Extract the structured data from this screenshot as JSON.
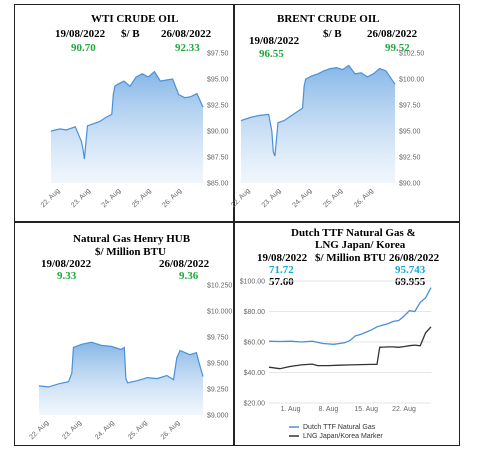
{
  "panels": {
    "wti": {
      "title": "WTI CRUDE OIL",
      "unit": "$/ B",
      "date_start": "19/08/2022",
      "date_end": "26/08/2022",
      "price_start": "90.70",
      "price_end": "92.33"
    },
    "brent": {
      "title": "BRENT  CRUDE OIL",
      "unit": "$/ B",
      "date_start": "19/08/2022",
      "date_end": "26/08/2022",
      "price_start": "96.55",
      "price_end": "99.52"
    },
    "ng": {
      "title": "Natural Gas  Henry HUB",
      "unit": "$/ Million BTU",
      "date_start": "19/08/2022",
      "date_end": "26/08/2022",
      "price_start": "9.33",
      "price_end": "9.36"
    },
    "ttf": {
      "title": "Dutch TTF Natural Gas &",
      "subtitle": "LNG Japan/ Korea",
      "unit": "$/ Million BTU",
      "date_start": "19/08/2022",
      "date_end": "26/08/2022",
      "ttf_start": "71.72",
      "lng_start": "57.60",
      "ttf_end": "95.743",
      "lng_end": "69.955"
    }
  },
  "colors": {
    "line": "#4a90d9",
    "fill_top": "#7fb3e6",
    "fill_bottom": "#e8f1fb",
    "green": "#1fa83c",
    "cyan": "#1aa6d6",
    "lng": "#333333"
  },
  "chart_data": [
    {
      "type": "area",
      "title": "WTI CRUDE OIL",
      "x_ticks": [
        "22. Aug",
        "23. Aug",
        "24. Aug",
        "25. Aug",
        "26. Aug"
      ],
      "y_ticks": [
        "$85.00",
        "$87.50",
        "$90.00",
        "$92.50",
        "$95.00",
        "$97.50"
      ],
      "ylim": [
        85,
        97.5
      ],
      "xlim": [
        0,
        5
      ],
      "grid": false,
      "x": [
        0,
        0.3,
        0.5,
        0.8,
        1.0,
        1.05,
        1.1,
        1.15,
        1.2,
        1.4,
        1.6,
        1.8,
        2.0,
        2.05,
        2.1,
        2.2,
        2.4,
        2.6,
        2.8,
        3.0,
        3.2,
        3.4,
        3.6,
        3.8,
        4.0,
        4.2,
        4.4,
        4.6,
        4.8,
        5.0
      ],
      "values": [
        90.0,
        90.2,
        90.1,
        90.4,
        89.0,
        88.3,
        87.3,
        89.0,
        90.5,
        90.7,
        90.9,
        91.3,
        91.6,
        93.5,
        94.3,
        94.5,
        94.8,
        94.3,
        95.2,
        95.5,
        95.2,
        95.7,
        94.8,
        94.9,
        95.0,
        93.5,
        93.2,
        93.3,
        93.6,
        92.3
      ]
    },
    {
      "type": "area",
      "title": "BRENT  CRUDE OIL",
      "x_ticks": [
        "22. Aug",
        "23. Aug",
        "24. Aug",
        "25. Aug",
        "26. Aug"
      ],
      "y_ticks": [
        "$90.00",
        "$92.50",
        "$95.00",
        "$97.50",
        "$100.00",
        "$102.50"
      ],
      "ylim": [
        90,
        102.5
      ],
      "xlim": [
        0,
        5
      ],
      "grid": false,
      "x": [
        0,
        0.3,
        0.6,
        0.9,
        1.0,
        1.05,
        1.1,
        1.2,
        1.4,
        1.6,
        1.8,
        2.0,
        2.05,
        2.1,
        2.3,
        2.5,
        2.7,
        2.9,
        3.1,
        3.3,
        3.5,
        3.7,
        3.9,
        4.1,
        4.3,
        4.5,
        4.7,
        5.0
      ],
      "values": [
        96.0,
        96.3,
        96.5,
        96.6,
        95.0,
        93.0,
        92.6,
        95.8,
        96.0,
        96.4,
        96.8,
        97.2,
        99.3,
        100.0,
        100.3,
        100.5,
        100.8,
        101.0,
        101.1,
        100.9,
        101.3,
        100.5,
        100.6,
        100.2,
        100.5,
        101.0,
        100.8,
        99.5
      ]
    },
    {
      "type": "area",
      "title": "Natural Gas  Henry HUB",
      "x_ticks": [
        "22. Aug",
        "23. Aug",
        "24. Aug",
        "25. Aug",
        "26. Aug"
      ],
      "y_ticks": [
        "$9.000",
        "$9.250",
        "$9.500",
        "$9.750",
        "$10.000",
        "$10.250"
      ],
      "ylim": [
        9.0,
        10.25
      ],
      "xlim": [
        0,
        5
      ],
      "grid": false,
      "x": [
        0,
        0.3,
        0.6,
        0.9,
        1.0,
        1.05,
        1.3,
        1.6,
        1.9,
        2.2,
        2.5,
        2.6,
        2.65,
        2.7,
        3.0,
        3.3,
        3.6,
        3.9,
        4.1,
        4.2,
        4.3,
        4.6,
        4.8,
        4.9,
        5.0
      ],
      "values": [
        9.28,
        9.27,
        9.3,
        9.32,
        9.4,
        9.65,
        9.68,
        9.7,
        9.67,
        9.66,
        9.63,
        9.65,
        9.35,
        9.31,
        9.33,
        9.36,
        9.35,
        9.38,
        9.34,
        9.55,
        9.62,
        9.58,
        9.6,
        9.48,
        9.37
      ]
    },
    {
      "type": "line",
      "title": "Dutch TTF Natural Gas & LNG Japan/ Korea",
      "x_ticks": [
        "1. Aug",
        "8. Aug",
        "15. Aug",
        "22. Aug"
      ],
      "y_ticks": [
        "$20.00",
        "$40.00",
        "$60.00",
        "$80.00",
        "$100.00"
      ],
      "ylim": [
        20,
        100
      ],
      "xlim": [
        -3,
        27
      ],
      "grid": true,
      "legend": "bottom",
      "series": [
        {
          "name": "Dutch TTF Natural Gas",
          "x": [
            -3,
            -1,
            1,
            3,
            5,
            7,
            9,
            11,
            12,
            13,
            14,
            15,
            16,
            17,
            18,
            19,
            20,
            21,
            22,
            23,
            24,
            25,
            26,
            27
          ],
          "values": [
            60.5,
            60.3,
            60.5,
            60.0,
            60.5,
            59.0,
            58.5,
            59.5,
            61.0,
            64.0,
            65.0,
            66.5,
            68.0,
            70.0,
            71.0,
            72.0,
            73.5,
            74.0,
            77.0,
            80.5,
            80.0,
            86.0,
            89.0,
            95.7
          ]
        },
        {
          "name": "LNG Japan/Korea Marker",
          "x": [
            -3,
            -1,
            1,
            3,
            5,
            6,
            8,
            10,
            12,
            14,
            16,
            17,
            17.5,
            19,
            20,
            21,
            22,
            23,
            24,
            25,
            26,
            27
          ],
          "values": [
            43.5,
            42.5,
            44.0,
            45.0,
            45.5,
            44.5,
            44.5,
            44.8,
            45.0,
            45.2,
            45.3,
            45.3,
            56.5,
            56.8,
            56.8,
            56.5,
            57.0,
            57.6,
            58.0,
            57.5,
            66.0,
            70.0
          ]
        }
      ]
    }
  ]
}
